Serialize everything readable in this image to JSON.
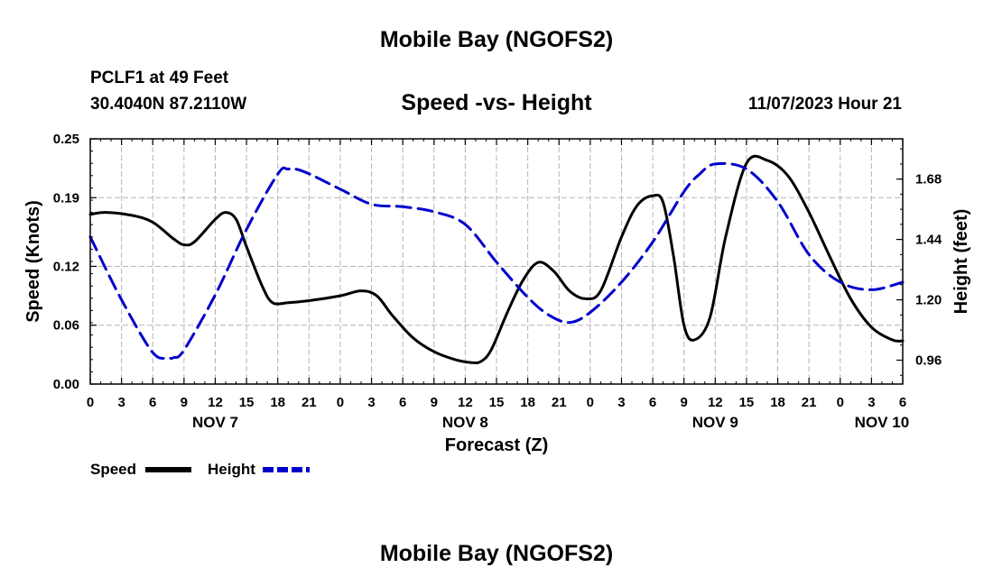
{
  "header": {
    "title": "Mobile Bay (NGOFS2)",
    "station": "PCLF1 at 49 Feet",
    "coords": "30.4040N  87.2110W",
    "subtitle": "Speed -vs- Height",
    "datetime": "11/07/2023 Hour 21"
  },
  "footer": {
    "title": "Mobile Bay (NGOFS2)"
  },
  "chart_data": {
    "type": "line",
    "xlabel": "Forecast (Z)",
    "ylabel_left": "Speed (Knots)",
    "ylabel_right": "Height (feet)",
    "x_range": [
      0,
      78
    ],
    "x_ticks": [
      0,
      3,
      6,
      9,
      12,
      15,
      18,
      21,
      24,
      27,
      30,
      33,
      36,
      39,
      42,
      45,
      48,
      51,
      54,
      57,
      60,
      63,
      66,
      69,
      72,
      75,
      78
    ],
    "x_tick_labels": [
      "0",
      "3",
      "6",
      "9",
      "12",
      "15",
      "18",
      "21",
      "0",
      "3",
      "6",
      "9",
      "12",
      "15",
      "18",
      "21",
      "0",
      "3",
      "6",
      "9",
      "12",
      "15",
      "18",
      "21",
      "0",
      "3",
      "6"
    ],
    "day_labels": [
      {
        "hour": 12,
        "label": "NOV 7"
      },
      {
        "hour": 36,
        "label": "NOV 8"
      },
      {
        "hour": 60,
        "label": "NOV 9"
      },
      {
        "hour": 76,
        "label": "NOV 10"
      }
    ],
    "left_axis": {
      "range": [
        0,
        0.25
      ],
      "ticks": [
        0,
        0.06,
        0.12,
        0.19,
        0.25
      ],
      "tick_labels": [
        "0.00",
        "0.06",
        "0.12",
        "0.19",
        "0.25"
      ]
    },
    "right_axis": {
      "range": [
        0.865,
        1.84
      ],
      "ticks": [
        0.96,
        1.2,
        1.44,
        1.68
      ],
      "tick_labels": [
        "0.96",
        "1.20",
        "1.44",
        "1.68"
      ]
    },
    "grid": true,
    "series": [
      {
        "name": "Speed",
        "axis": "left",
        "color": "#000000",
        "dash": "solid",
        "x": [
          0,
          1.5,
          4,
          6,
          8,
          9,
          10,
          12,
          13,
          14,
          15,
          16.5,
          17.5,
          19,
          21,
          24,
          26,
          27.5,
          29,
          31,
          33,
          35,
          36.5,
          37.5,
          38.5,
          40,
          41.5,
          43,
          44.5,
          46,
          47.5,
          49,
          51,
          52.5,
          54,
          55,
          56,
          57,
          58,
          59.5,
          61,
          63,
          65,
          67,
          69,
          71,
          73,
          75,
          77,
          78
        ],
        "values": [
          0.173,
          0.175,
          0.172,
          0.165,
          0.148,
          0.142,
          0.145,
          0.168,
          0.175,
          0.168,
          0.14,
          0.1,
          0.083,
          0.083,
          0.085,
          0.09,
          0.095,
          0.09,
          0.07,
          0.047,
          0.033,
          0.025,
          0.022,
          0.023,
          0.035,
          0.072,
          0.105,
          0.124,
          0.115,
          0.095,
          0.087,
          0.095,
          0.15,
          0.182,
          0.192,
          0.185,
          0.13,
          0.06,
          0.045,
          0.068,
          0.15,
          0.225,
          0.228,
          0.212,
          0.175,
          0.13,
          0.087,
          0.058,
          0.045,
          0.044
        ]
      },
      {
        "name": "Height",
        "axis": "right",
        "color": "#0000cc",
        "dash": "dashed",
        "x": [
          0,
          3,
          6,
          7.5,
          8,
          9,
          12,
          15,
          18,
          19,
          20.5,
          24,
          27,
          30,
          33,
          36,
          39,
          42,
          44,
          46,
          48,
          51,
          54,
          57,
          58.5,
          60,
          63,
          66,
          69,
          72,
          75,
          78
        ],
        "values": [
          1.45,
          1.2,
          0.99,
          0.97,
          0.97,
          1.0,
          1.22,
          1.48,
          1.7,
          1.72,
          1.71,
          1.64,
          1.58,
          1.57,
          1.55,
          1.5,
          1.35,
          1.21,
          1.14,
          1.11,
          1.15,
          1.27,
          1.43,
          1.63,
          1.7,
          1.74,
          1.72,
          1.59,
          1.38,
          1.27,
          1.24,
          1.27
        ]
      }
    ],
    "legend": {
      "position": "bottom-left",
      "entries": [
        "Speed",
        "Height"
      ]
    }
  }
}
